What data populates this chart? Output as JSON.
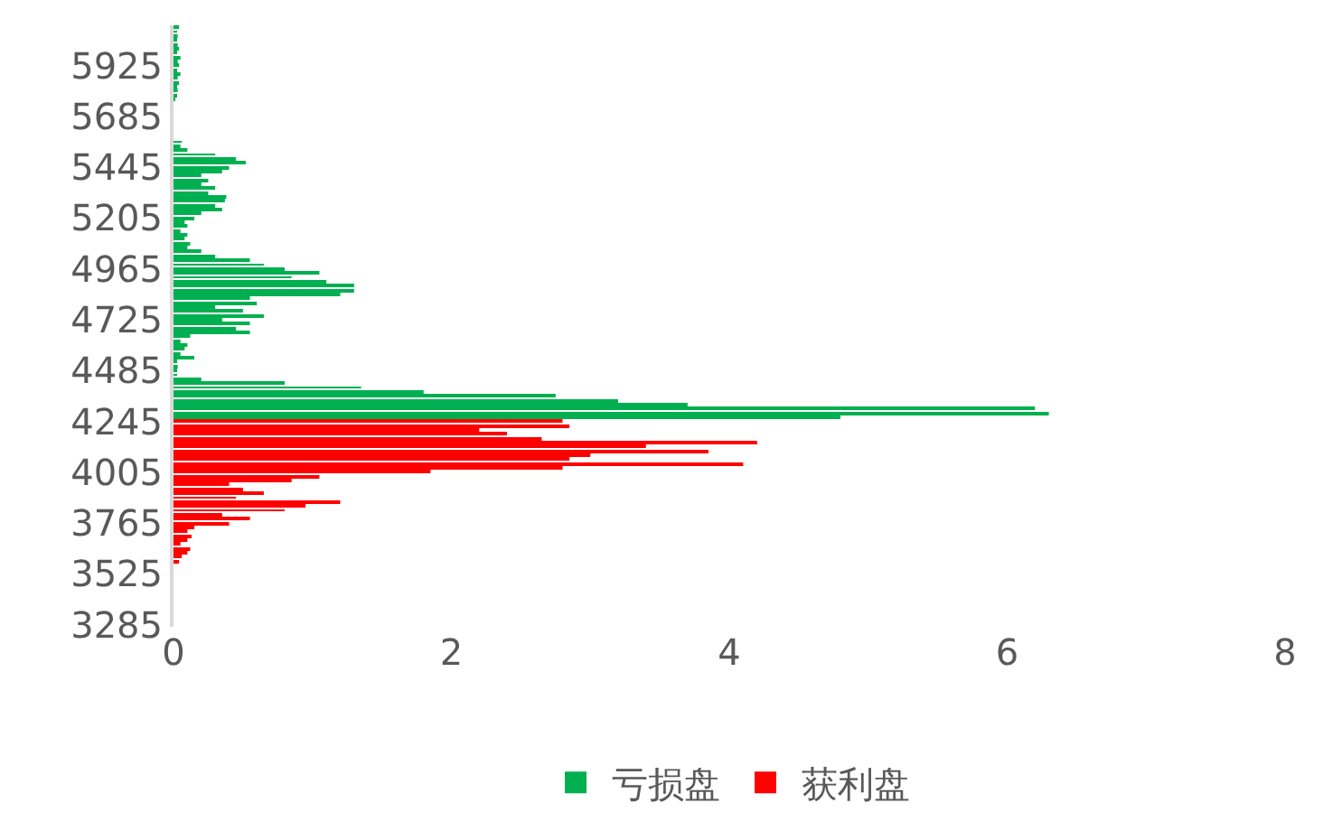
{
  "chart_data": {
    "type": "bar",
    "orientation": "horizontal",
    "categories": [
      null,
      null,
      null,
      null,
      null,
      null,
      null,
      null,
      null,
      "5925",
      null,
      null,
      null,
      null,
      null,
      null,
      null,
      null,
      null,
      null,
      null,
      "5685",
      null,
      null,
      null,
      null,
      null,
      null,
      null,
      null,
      null,
      null,
      null,
      "5445",
      null,
      null,
      null,
      null,
      null,
      null,
      null,
      null,
      null,
      null,
      null,
      "5205",
      null,
      null,
      null,
      null,
      null,
      null,
      null,
      null,
      null,
      null,
      null,
      "4965",
      null,
      null,
      null,
      null,
      null,
      null,
      null,
      null,
      null,
      null,
      null,
      "4725",
      null,
      null,
      null,
      null,
      null,
      null,
      null,
      null,
      null,
      null,
      null,
      "4485",
      null,
      null,
      null,
      null,
      null,
      null,
      null,
      null,
      null,
      null,
      null,
      "4245",
      null,
      null,
      null,
      null,
      null,
      null,
      null,
      null,
      null,
      null,
      null,
      "4005",
      null,
      null,
      null,
      null,
      null,
      null,
      null,
      null,
      null,
      null,
      null,
      "3765",
      null,
      null,
      null,
      null,
      null,
      null,
      null,
      null,
      null,
      null,
      null,
      "3525",
      null,
      null,
      null,
      null,
      null,
      null,
      null,
      null,
      null,
      null,
      null,
      "3285"
    ],
    "series": [
      {
        "name": "亏损盘",
        "color": "#00b050",
        "values": [
          0.04,
          0.02,
          0.03,
          0.02,
          0.03,
          0.04,
          0.02,
          0.05,
          0.03,
          0.04,
          0.02,
          0.05,
          0.03,
          0.04,
          0.02,
          0.03,
          0.02,
          0.01,
          0,
          0,
          0,
          0,
          0,
          0,
          0,
          0,
          0,
          0.06,
          0.05,
          0.1,
          0.3,
          0.45,
          0.52,
          0.4,
          0.35,
          0.2,
          0.25,
          0.2,
          0.3,
          0.25,
          0.38,
          0.37,
          0.3,
          0.35,
          0.2,
          0.15,
          0.08,
          0.1,
          0.05,
          0.1,
          0.08,
          0.12,
          0.1,
          0.2,
          0.3,
          0.55,
          0.65,
          0.8,
          1.05,
          0.85,
          1.1,
          1.3,
          1.3,
          1.2,
          0.55,
          0.6,
          0.3,
          0.5,
          0.65,
          0.35,
          0.55,
          0.45,
          0.55,
          0.12,
          0.05,
          0.1,
          0.08,
          0.05,
          0.15,
          0.02,
          0.03,
          0.02,
          0.02,
          0.2,
          0.8,
          1.35,
          1.8,
          2.75,
          3.2,
          3.7,
          6.2,
          6.3,
          4.8,
          null,
          null,
          null,
          null,
          null,
          null,
          null,
          null,
          null,
          null,
          null,
          null,
          null,
          null,
          null,
          null,
          null,
          null,
          null,
          null,
          null,
          null,
          null,
          null,
          null,
          null,
          null,
          null,
          null,
          null,
          null,
          null,
          null,
          null,
          null,
          null,
          null,
          null,
          null,
          null,
          null,
          null,
          null,
          null,
          null,
          null,
          null,
          null,
          null
        ]
      },
      {
        "name": "获利盘",
        "color": "#ff0000",
        "values": [
          null,
          null,
          null,
          null,
          null,
          null,
          null,
          null,
          null,
          null,
          null,
          null,
          null,
          null,
          null,
          null,
          null,
          null,
          null,
          null,
          null,
          null,
          null,
          null,
          null,
          null,
          null,
          null,
          null,
          null,
          null,
          null,
          null,
          null,
          null,
          null,
          null,
          null,
          null,
          null,
          null,
          null,
          null,
          null,
          null,
          null,
          null,
          null,
          null,
          null,
          null,
          null,
          null,
          null,
          null,
          null,
          null,
          null,
          null,
          null,
          null,
          null,
          null,
          null,
          null,
          null,
          null,
          null,
          null,
          null,
          null,
          null,
          null,
          null,
          null,
          null,
          null,
          null,
          null,
          null,
          null,
          null,
          null,
          null,
          null,
          null,
          null,
          null,
          null,
          null,
          null,
          null,
          null,
          2.8,
          2.85,
          2.2,
          2.4,
          2.65,
          4.2,
          3.4,
          3.85,
          3.0,
          2.85,
          4.1,
          2.8,
          1.85,
          1.05,
          0.85,
          0.4,
          0.5,
          0.65,
          0.45,
          1.2,
          0.95,
          0.8,
          0.35,
          0.55,
          0.4,
          0.15,
          0.1,
          0.13,
          0.1,
          0.05,
          0.12,
          0.1,
          0.06,
          0.04,
          null,
          null,
          null,
          null,
          null,
          null,
          null,
          null,
          null,
          null,
          null,
          null,
          null,
          null,
          null
        ]
      }
    ],
    "xlim": [
      0,
      8
    ],
    "xticks": [
      0,
      2,
      4,
      6,
      8
    ],
    "legend": "bottom"
  }
}
